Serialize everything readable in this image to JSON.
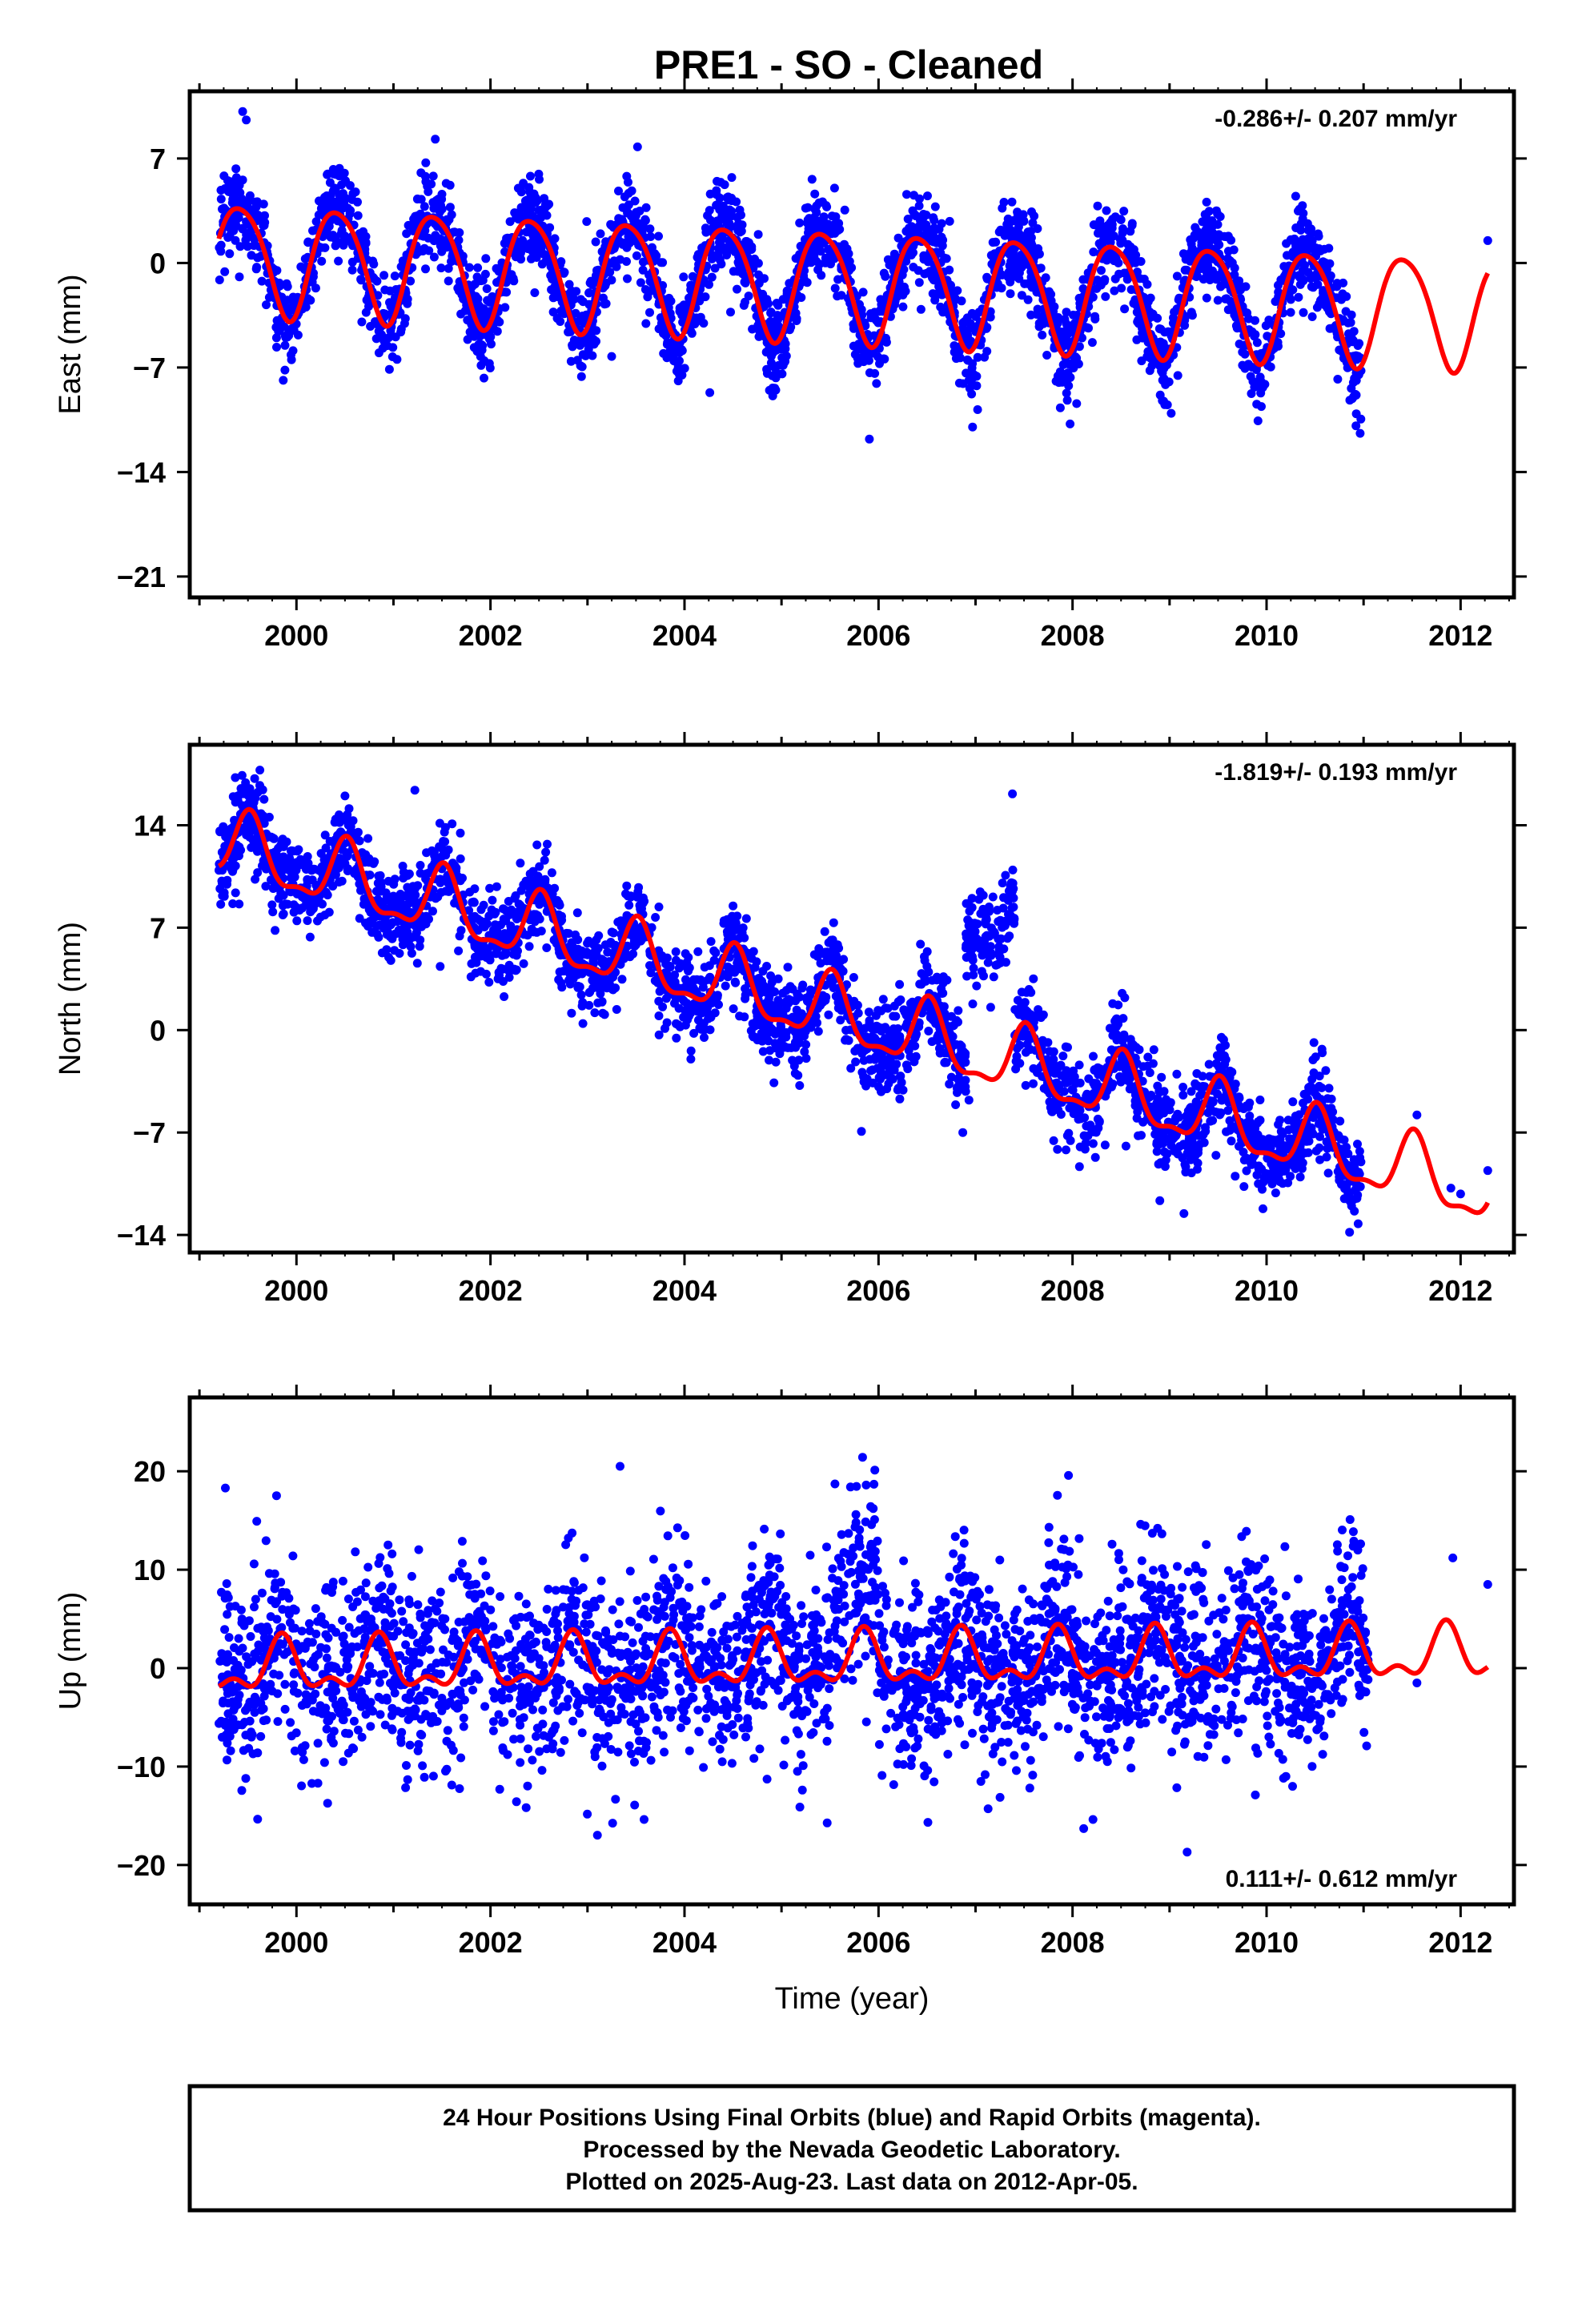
{
  "title": "PRE1  - SO - Cleaned",
  "footer": {
    "lines": [
      "24 Hour Positions Using Final Orbits (blue) and Rapid Orbits (magenta).",
      "Processed by the Nevada Geodetic Laboratory.",
      "Plotted on 2025-Aug-23. Last data on 2012-Apr-05."
    ]
  },
  "colors": {
    "points": "#0000ff",
    "model": "#ff0000",
    "frame": "#000000"
  },
  "chart_data": [
    {
      "type": "scatter",
      "ylabel": "East (mm)",
      "xlabel": "",
      "xlim": [
        1998.9,
        2012.55
      ],
      "ylim": [
        -22.4,
        11.5
      ],
      "x_ticks": [
        2000,
        2002,
        2004,
        2006,
        2008,
        2010,
        2012
      ],
      "y_ticks": [
        7,
        0,
        -7,
        -14,
        -21
      ],
      "rate": "-0.286+/- 0.207 mm/yr",
      "rate_position": "top-right",
      "model": {
        "offset": 0.2,
        "slope": -0.286,
        "annual_amp": 3.7,
        "annual_peak": 0.42,
        "semi_amp": 0.5,
        "semi_peak": 0.2,
        "x_start": 1999.2,
        "x_end": 2012.28
      },
      "scatter": {
        "start": 1999.2,
        "end": 2010.98,
        "count": 3000,
        "noise": 1.5,
        "seed": 11,
        "extra_x": [
          2012.28
        ],
        "extra_y": [
          1.5
        ]
      },
      "series": [
        {
          "name": "",
          "color": "#0000ff"
        },
        {
          "name": "",
          "color": "#ff0000"
        }
      ]
    },
    {
      "type": "scatter",
      "ylabel": "North (mm)",
      "xlabel": "",
      "xlim": [
        1998.9,
        2012.55
      ],
      "ylim": [
        -15.2,
        19.5
      ],
      "x_ticks": [
        2000,
        2002,
        2004,
        2006,
        2008,
        2010,
        2012
      ],
      "y_ticks": [
        14,
        7,
        0,
        -7,
        -14
      ],
      "rate": "-1.819+/- 0.193 mm/yr",
      "rate_position": "top-right",
      "model": {
        "offset": 11.2,
        "slope": -1.819,
        "annual_amp": 2.2,
        "annual_peak": 0.52,
        "semi_amp": 0.8,
        "semi_peak": 0.02,
        "x_start": 1999.2,
        "x_end": 2012.28
      },
      "scatter": {
        "start": 1999.2,
        "end": 2010.98,
        "count": 3000,
        "noise": 1.5,
        "seed": 23,
        "offset_window": [
          2006.9,
          2007.4,
          9.5
        ],
        "extra_x": [
          2011.55,
          2011.9,
          2012.0,
          2012.28
        ],
        "extra_y": [
          -5.8,
          -10.8,
          -11.2,
          -9.6
        ]
      },
      "series": [
        {
          "name": "",
          "color": "#0000ff"
        },
        {
          "name": "",
          "color": "#ff0000"
        }
      ]
    },
    {
      "type": "scatter",
      "ylabel": "Up (mm)",
      "xlabel": "Time (year)",
      "xlim": [
        1998.9,
        2012.55
      ],
      "ylim": [
        -24,
        27.5
      ],
      "x_ticks": [
        2000,
        2002,
        2004,
        2006,
        2008,
        2010,
        2012
      ],
      "y_ticks": [
        20,
        10,
        0,
        -10,
        -20
      ],
      "rate": "0.111+/- 0.612 mm/yr",
      "rate_position": "bottom-right",
      "model": {
        "offset": 0.0,
        "slope": 0.111,
        "annual_amp": 2.3,
        "annual_peak": 0.85,
        "semi_amp": 1.3,
        "semi_peak": 0.35,
        "x_start": 1999.2,
        "x_end": 2012.28
      },
      "scatter": {
        "start": 1999.2,
        "end": 2011.05,
        "count": 3000,
        "noise": 4.8,
        "seed": 37,
        "bump_window": [
          2005.5,
          2006.0,
          5.5
        ],
        "extra_x": [
          2011.55,
          2011.92,
          2012.28
        ],
        "extra_y": [
          -1.5,
          11.2,
          8.5
        ]
      },
      "series": [
        {
          "name": "",
          "color": "#0000ff"
        },
        {
          "name": "",
          "color": "#ff0000"
        }
      ]
    }
  ]
}
